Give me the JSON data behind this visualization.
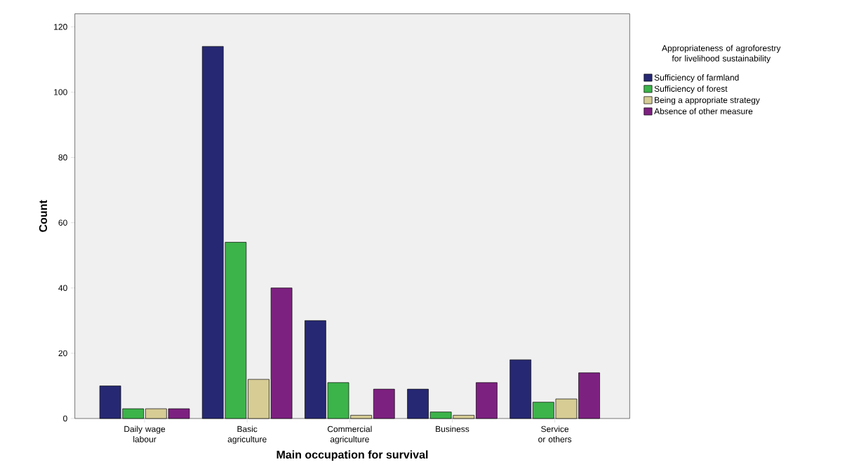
{
  "chart_data": {
    "type": "bar",
    "xlabel": "Main occupation for survival",
    "ylabel": "Count",
    "legend_title": "Appropriateness of agroforestry for livelihood sustainability",
    "categories": [
      "Daily wage labour",
      "Basic agriculture",
      "Commercial agriculture",
      "Business",
      "Service or others"
    ],
    "series": [
      {
        "name": "Sufficiency of farmland",
        "color": "#262873",
        "values": [
          10,
          114,
          30,
          9,
          18
        ]
      },
      {
        "name": "Sufficiency of forest",
        "color": "#3cb44a",
        "values": [
          3,
          54,
          11,
          2,
          5
        ]
      },
      {
        "name": "Being a appropriate strategy",
        "color": "#d6cc94",
        "values": [
          3,
          12,
          1,
          1,
          6
        ]
      },
      {
        "name": "Absence of other measure",
        "color": "#7d2180",
        "values": [
          3,
          40,
          9,
          11,
          14
        ]
      }
    ],
    "ylim": [
      0,
      124
    ],
    "yticks": [
      0,
      20,
      40,
      60,
      80,
      100,
      120
    ],
    "legend": "top right"
  }
}
